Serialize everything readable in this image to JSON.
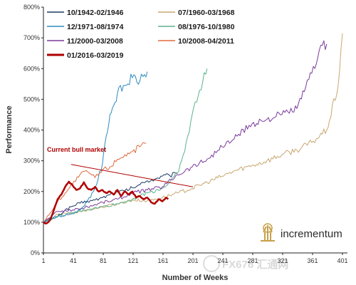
{
  "chart_data": {
    "type": "line",
    "xlabel": "Number of Weeks",
    "ylabel": "Performance",
    "xlim": [
      1,
      401
    ],
    "ylim": [
      0,
      800
    ],
    "x_ticks": [
      "1",
      "41",
      "81",
      "121",
      "161",
      "201",
      "241",
      "281",
      "321",
      "361",
      "401"
    ],
    "y_ticks": [
      "0%",
      "100%",
      "200%",
      "300%",
      "400%",
      "500%",
      "600%",
      "700%",
      "800%"
    ],
    "grid": false,
    "legend_position": "top-left",
    "series": [
      {
        "name": "10/1942-02/1946",
        "color": "#1f3864",
        "width": 1.0,
        "points": [
          [
            1,
            100
          ],
          [
            10,
            108
          ],
          [
            20,
            118
          ],
          [
            30,
            140
          ],
          [
            40,
            152
          ],
          [
            50,
            162
          ],
          [
            60,
            168
          ],
          [
            70,
            172
          ],
          [
            80,
            180
          ],
          [
            90,
            190
          ],
          [
            100,
            198
          ],
          [
            110,
            202
          ],
          [
            120,
            212
          ],
          [
            130,
            222
          ],
          [
            140,
            235
          ],
          [
            150,
            240
          ],
          [
            160,
            250
          ],
          [
            170,
            252
          ],
          [
            180,
            258
          ]
        ]
      },
      {
        "name": "07/1960-03/1968",
        "color": "#c8a770",
        "width": 1.0,
        "points": [
          [
            1,
            100
          ],
          [
            20,
            125
          ],
          [
            40,
            130
          ],
          [
            60,
            140
          ],
          [
            80,
            150
          ],
          [
            100,
            160
          ],
          [
            120,
            172
          ],
          [
            140,
            170
          ],
          [
            160,
            180
          ],
          [
            180,
            195
          ],
          [
            200,
            210
          ],
          [
            220,
            230
          ],
          [
            240,
            250
          ],
          [
            260,
            270
          ],
          [
            280,
            285
          ],
          [
            300,
            300
          ],
          [
            320,
            320
          ],
          [
            340,
            335
          ],
          [
            360,
            360
          ],
          [
            380,
            400
          ],
          [
            395,
            540
          ],
          [
            401,
            715
          ]
        ]
      },
      {
        "name": "12/1971-08/1974",
        "color": "#2e8bc0",
        "width": 1.0,
        "points": [
          [
            1,
            100
          ],
          [
            10,
            112
          ],
          [
            20,
            118
          ],
          [
            30,
            122
          ],
          [
            40,
            128
          ],
          [
            50,
            140
          ],
          [
            60,
            170
          ],
          [
            70,
            210
          ],
          [
            80,
            290
          ],
          [
            85,
            380
          ],
          [
            90,
            450
          ],
          [
            95,
            480
          ],
          [
            100,
            520
          ],
          [
            110,
            545
          ],
          [
            120,
            570
          ],
          [
            130,
            560
          ],
          [
            140,
            590
          ]
        ]
      },
      {
        "name": "08/1976-10/1980",
        "color": "#5ab48a",
        "width": 1.0,
        "points": [
          [
            1,
            100
          ],
          [
            20,
            118
          ],
          [
            40,
            130
          ],
          [
            60,
            142
          ],
          [
            80,
            150
          ],
          [
            100,
            160
          ],
          [
            120,
            175
          ],
          [
            140,
            195
          ],
          [
            160,
            210
          ],
          [
            170,
            230
          ],
          [
            180,
            260
          ],
          [
            190,
            330
          ],
          [
            200,
            450
          ],
          [
            210,
            530
          ],
          [
            220,
            600
          ]
        ]
      },
      {
        "name": "11/2000-03/2008",
        "color": "#7b3a9c",
        "width": 1.0,
        "points": [
          [
            1,
            100
          ],
          [
            20,
            135
          ],
          [
            40,
            140
          ],
          [
            60,
            150
          ],
          [
            80,
            165
          ],
          [
            100,
            175
          ],
          [
            120,
            195
          ],
          [
            140,
            205
          ],
          [
            160,
            215
          ],
          [
            180,
            255
          ],
          [
            200,
            280
          ],
          [
            220,
            305
          ],
          [
            240,
            345
          ],
          [
            260,
            380
          ],
          [
            280,
            420
          ],
          [
            300,
            435
          ],
          [
            320,
            450
          ],
          [
            340,
            470
          ],
          [
            350,
            525
          ],
          [
            360,
            585
          ],
          [
            370,
            660
          ],
          [
            380,
            680
          ]
        ]
      },
      {
        "name": "10/2008-04/2011",
        "color": "#e06a3c",
        "width": 1.0,
        "points": [
          [
            1,
            100
          ],
          [
            10,
            130
          ],
          [
            20,
            168
          ],
          [
            30,
            195
          ],
          [
            40,
            225
          ],
          [
            50,
            255
          ],
          [
            60,
            265
          ],
          [
            70,
            245
          ],
          [
            80,
            270
          ],
          [
            90,
            280
          ],
          [
            100,
            305
          ],
          [
            110,
            320
          ],
          [
            120,
            330
          ],
          [
            130,
            345
          ],
          [
            138,
            355
          ]
        ]
      },
      {
        "name": "01/2016-03/2019",
        "color": "#b00000",
        "width": 2.5,
        "points": [
          [
            1,
            100
          ],
          [
            5,
            96
          ],
          [
            10,
            108
          ],
          [
            15,
            140
          ],
          [
            20,
            175
          ],
          [
            25,
            190
          ],
          [
            30,
            215
          ],
          [
            35,
            232
          ],
          [
            40,
            220
          ],
          [
            45,
            205
          ],
          [
            50,
            210
          ],
          [
            55,
            230
          ],
          [
            60,
            210
          ],
          [
            65,
            205
          ],
          [
            70,
            215
          ],
          [
            75,
            200
          ],
          [
            80,
            205
          ],
          [
            85,
            195
          ],
          [
            90,
            200
          ],
          [
            95,
            190
          ],
          [
            100,
            205
          ],
          [
            105,
            185
          ],
          [
            110,
            200
          ],
          [
            115,
            190
          ],
          [
            120,
            200
          ],
          [
            125,
            180
          ],
          [
            130,
            185
          ],
          [
            135,
            175
          ],
          [
            140,
            180
          ],
          [
            145,
            165
          ],
          [
            150,
            160
          ],
          [
            155,
            175
          ],
          [
            160,
            168
          ],
          [
            165,
            180
          ],
          [
            168,
            175
          ]
        ]
      }
    ],
    "annotations": [
      {
        "text": "Current bull market",
        "arrow_from": [
          38,
          288
        ],
        "arrow_to": [
          201,
          215
        ]
      }
    ]
  },
  "logo_text": "incrementum",
  "watermark_text": "FX678 汇通网"
}
